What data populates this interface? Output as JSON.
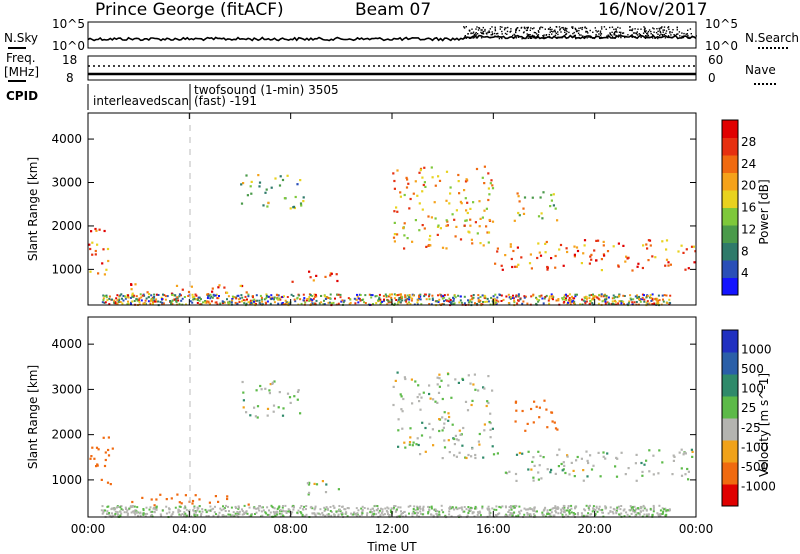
{
  "header": {
    "station": "Prince George (fitACF)",
    "beam": "Beam 07",
    "date": "16/Nov/2017"
  },
  "noise_panel": {
    "left_label": "N.Sky",
    "right_label": "N.Search",
    "left_ticks": [
      "10^5",
      "10^0"
    ],
    "right_ticks": [
      "10^5",
      "10^0"
    ]
  },
  "freq_panel": {
    "left_label_line1": "Freq.",
    "left_label_line2": "[MHz]",
    "right_label": "Nave",
    "left_ticks": [
      "18",
      "8"
    ],
    "right_ticks": [
      "60",
      "0"
    ]
  },
  "cpid_panel": {
    "label": "CPID",
    "modes": [
      {
        "name": "interleavedscan",
        "start_hour": 0
      },
      {
        "name": "twofsound (1-min) 3505",
        "start_hour": 4.2
      },
      {
        "name": "(fast) -191",
        "start_hour": 4.2
      }
    ]
  },
  "time_axis": {
    "label": "Time UT",
    "ticks": [
      "00:00",
      "04:00",
      "08:00",
      "12:00",
      "16:00",
      "20:00",
      "00:00"
    ],
    "start_hour": 0,
    "end_hour": 24
  },
  "range_axis": {
    "label": "Slant Range [km]",
    "ticks": [
      "1000",
      "2000",
      "3000",
      "4000"
    ],
    "ylim": [
      180,
      4600
    ]
  },
  "power_colorbar": {
    "label": "Power [dB]",
    "ticks": [
      "4",
      "8",
      "12",
      "16",
      "20",
      "24",
      "28"
    ],
    "colors": [
      "#1414ff",
      "#2a4fb8",
      "#2f7a6a",
      "#4a9a4a",
      "#7ec83a",
      "#e8d21e",
      "#f5a21a",
      "#f06a10",
      "#e63010",
      "#e00000"
    ]
  },
  "velocity_colorbar": {
    "label": "Velocity [m s^-1]",
    "ticks": [
      "1000",
      "500",
      "100",
      "25",
      "-25",
      "-100",
      "-500",
      "-1000"
    ],
    "colors": [
      "#2030c0",
      "#2a5fa8",
      "#2f8a6a",
      "#5cba48",
      "#b4b4b0",
      "#f0a21a",
      "#f06a10",
      "#e00000"
    ]
  },
  "chart_data": {
    "type": "heatmap",
    "title": "Prince George (fitACF)",
    "xlabel": "Time UT",
    "ylabel": "Slant Range [km]",
    "xlim_hours": [
      0,
      24
    ],
    "ylim_km": [
      180,
      4600
    ],
    "colorbar_power_db": [
      4,
      8,
      12,
      16,
      20,
      24,
      28
    ],
    "colorbar_velocity_ms": [
      1000,
      500,
      100,
      25,
      -25,
      -100,
      -500,
      -1000
    ],
    "scatter_regions": [
      {
        "t_start": 0.0,
        "t_end": 1.0,
        "r_start": 900,
        "r_end": 2000,
        "power": 24,
        "velocity": -300
      },
      {
        "t_start": 1.5,
        "t_end": 6.5,
        "r_start": 450,
        "r_end": 700,
        "power": 24,
        "velocity": -150
      },
      {
        "t_start": 6.0,
        "t_end": 8.5,
        "r_start": 2400,
        "r_end": 3200,
        "power": 12,
        "velocity": 0
      },
      {
        "t_start": 8.0,
        "t_end": 10.0,
        "r_start": 700,
        "r_end": 1000,
        "power": 24,
        "velocity": 0
      },
      {
        "t_start": 12.0,
        "t_end": 16.0,
        "r_start": 1500,
        "r_end": 3400,
        "power": 20,
        "velocity": 0
      },
      {
        "t_start": 16.0,
        "t_end": 24.0,
        "r_start": 1000,
        "r_end": 1700,
        "power": 24,
        "velocity": 0
      },
      {
        "t_start": 16.8,
        "t_end": 18.5,
        "r_start": 2100,
        "r_end": 2800,
        "power": 16,
        "velocity": -300
      }
    ]
  }
}
